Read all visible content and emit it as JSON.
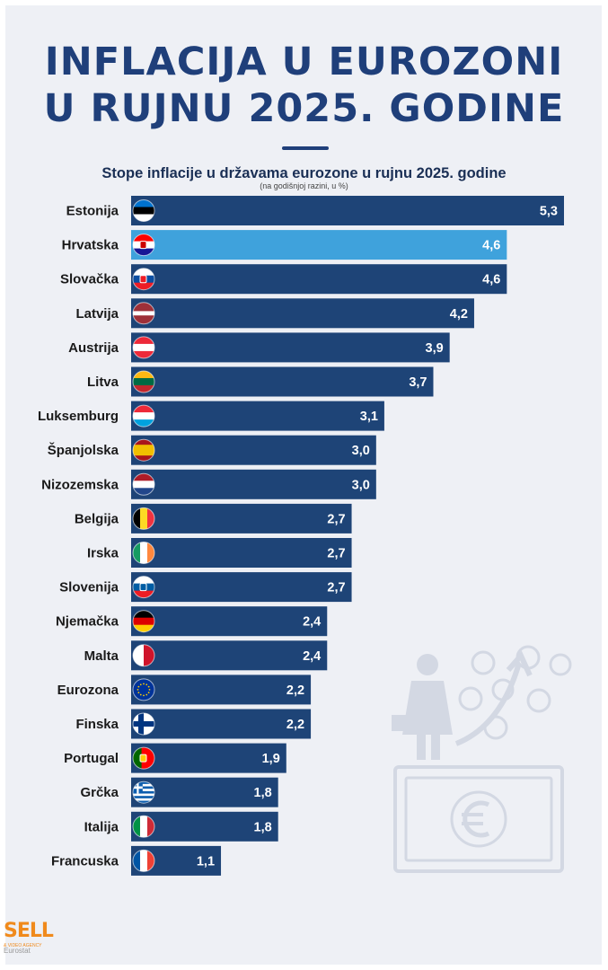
{
  "title": {
    "line1": "INFLACIJA U EUROZONI",
    "line2": "U RUJNU 2025. GODINE"
  },
  "logo": {
    "text": "SELL",
    "sub": "& VIDEO AGENCY"
  },
  "source": "Eurostat",
  "colors": {
    "bar": "#1e4477",
    "highlight": "#3fa2dc",
    "title": "#1f3f7a",
    "background": "#eef0f5"
  },
  "chart_data": {
    "type": "bar",
    "orientation": "horizontal",
    "title": "Stope inflacije u državama eurozone u rujnu 2025. godine",
    "subtitle": "(na godišnjoj razini, u %)",
    "categories": [
      "Estonija",
      "Hrvatska",
      "Slovačka",
      "Latvija",
      "Austrija",
      "Litva",
      "Luksemburg",
      "Španjolska",
      "Nizozemska",
      "Belgija",
      "Irska",
      "Slovenija",
      "Njemačka",
      "Malta",
      "Eurozona",
      "Finska",
      "Portugal",
      "Grčka",
      "Italija",
      "Francuska"
    ],
    "values": [
      5.3,
      4.6,
      4.6,
      4.2,
      3.9,
      3.7,
      3.1,
      3.0,
      3.0,
      2.7,
      2.7,
      2.7,
      2.4,
      2.4,
      2.2,
      2.2,
      1.9,
      1.8,
      1.8,
      1.1
    ],
    "value_labels": [
      "5,3",
      "4,6",
      "4,6",
      "4,2",
      "3,9",
      "3,7",
      "3,1",
      "3,0",
      "3,0",
      "2,7",
      "2,7",
      "2,7",
      "2,4",
      "2,4",
      "2,2",
      "2,2",
      "1,9",
      "1,8",
      "1,8",
      "1,1"
    ],
    "highlighted": "Hrvatska",
    "flag_icons": [
      "flag-ee-icon",
      "flag-hr-icon",
      "flag-sk-icon",
      "flag-lv-icon",
      "flag-at-icon",
      "flag-lt-icon",
      "flag-lu-icon",
      "flag-es-icon",
      "flag-nl-icon",
      "flag-be-icon",
      "flag-ie-icon",
      "flag-si-icon",
      "flag-de-icon",
      "flag-mt-icon",
      "flag-eu-icon",
      "flag-fi-icon",
      "flag-pt-icon",
      "flag-gr-icon",
      "flag-it-icon",
      "flag-fr-icon"
    ],
    "xlim": [
      0,
      5.3
    ],
    "grid": false,
    "legend": "none"
  }
}
